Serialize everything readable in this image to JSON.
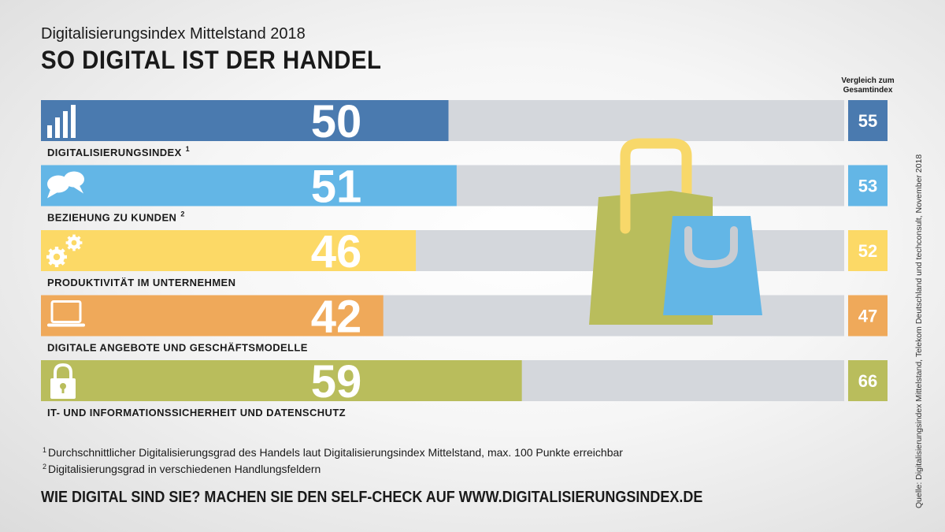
{
  "header": {
    "subtitle": "Digitalisierungsindex Mittelstand 2018",
    "title": "SO DIGITAL IST DER HANDEL",
    "comparison_label": "Vergleich zum Gesamtindex"
  },
  "chart_data": {
    "type": "bar",
    "orientation": "horizontal",
    "xlim": [
      0,
      100
    ],
    "categories": [
      "DIGITALISIERUNGSINDEX",
      "BEZIEHUNG ZU KUNDEN",
      "PRODUKTIVITÄT IM UNTERNEHMEN",
      "DIGITALE ANGEBOTE UND GESCHÄFTSMODELLE",
      "IT- UND INFORMATIONSSICHERHEIT UND DATENSCHUTZ"
    ],
    "label_footnotes": [
      "1",
      "2",
      "",
      "",
      ""
    ],
    "values": [
      50,
      51,
      46,
      42,
      59
    ],
    "comparison_values": [
      55,
      53,
      52,
      47,
      66
    ],
    "colors": [
      "#4a7aaf",
      "#63b6e6",
      "#fcd966",
      "#efa95a",
      "#b9bd5c"
    ],
    "track_color": "#d4d7dc",
    "icons": [
      "bar-chart-icon",
      "speech-bubbles-icon",
      "gears-icon",
      "laptop-icon",
      "padlock-icon"
    ]
  },
  "footnotes": [
    {
      "num": "1",
      "text": "Durchschnittlicher Digitalisierungsgrad des Handels laut Digitalisierungsindex Mittelstand, max. 100 Punkte erreichbar"
    },
    {
      "num": "2",
      "text": "Digitalisierungsgrad in verschiedenen Handlungsfeldern"
    }
  ],
  "cta": "WIE DIGITAL SIND SIE? MACHEN SIE DEN SELF-CHECK AUF WWW.DIGITALISIERUNGSINDEX.DE",
  "source": "Quelle: Digitalisierungsindex Mittelstand, Telekom Deutschland und techconsult, November 2018"
}
